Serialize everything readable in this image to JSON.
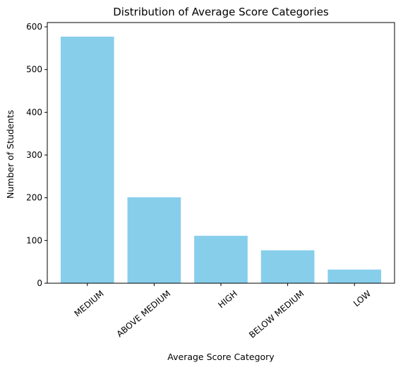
{
  "chart_data": {
    "type": "bar",
    "title": "Distribution of Average Score Categories",
    "xlabel": "Average Score Category",
    "ylabel": "Number of Students",
    "categories": [
      "MEDIUM",
      "ABOVE MEDIUM",
      "HIGH",
      "BELOW MEDIUM",
      "LOW"
    ],
    "values": [
      577,
      201,
      111,
      77,
      32
    ],
    "ylim": [
      0,
      610
    ],
    "yticks": [
      0,
      100,
      200,
      300,
      400,
      500,
      600
    ],
    "bar_color": "#87CEEB",
    "grid": false,
    "legend": "none",
    "xtick_rotation": "rotated 40 degrees"
  }
}
